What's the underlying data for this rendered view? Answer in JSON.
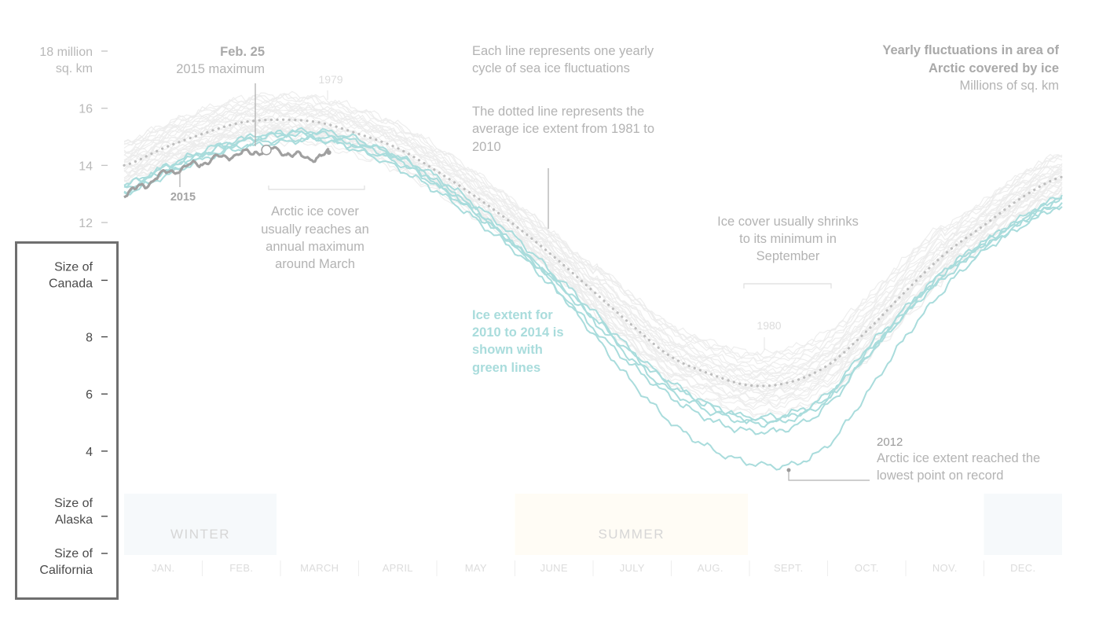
{
  "chart_data": {
    "type": "line",
    "title": "Yearly fluctuations in area of Arctic covered by ice",
    "title_lines": [
      "Yearly fluctuations in area of",
      "Arctic covered by ice"
    ],
    "subtitle": "Millions of sq. km",
    "xlabel": "",
    "ylabel": "Millions of sq. km",
    "ylim": [
      0,
      18
    ],
    "xlim_months": [
      0,
      12
    ],
    "grid": false,
    "legend": "none",
    "colors": {
      "historical": "#ececec",
      "recent": "#a9dcdc",
      "year_2015": "#a0a0a0",
      "average": "#bdbdbd",
      "winter_band": "#f6f9fb",
      "summer_band": "#fffcf5"
    },
    "y_ticks": [
      {
        "value": 18,
        "label": [
          "18 million",
          "sq. km"
        ],
        "highlight": false
      },
      {
        "value": 16,
        "label": [
          "16"
        ],
        "highlight": false
      },
      {
        "value": 14,
        "label": [
          "14"
        ],
        "highlight": false
      },
      {
        "value": 12,
        "label": [
          "12"
        ],
        "highlight": false
      },
      {
        "value": 9.98,
        "label": [
          "Size of",
          "Canada"
        ],
        "highlight": true
      },
      {
        "value": 8,
        "label": [
          "8"
        ],
        "highlight": true
      },
      {
        "value": 6,
        "label": [
          "6"
        ],
        "highlight": true
      },
      {
        "value": 4,
        "label": [
          "4"
        ],
        "highlight": true
      },
      {
        "value": 1.72,
        "label": [
          "Size of",
          "Alaska"
        ],
        "highlight": true
      },
      {
        "value": 0.42,
        "label": [
          "Size of",
          "California"
        ],
        "highlight": true
      }
    ],
    "months": [
      "JAN.",
      "FEB.",
      "MARCH",
      "APRIL",
      "MAY",
      "JUNE",
      "JULY",
      "AUG.",
      "SEPT.",
      "OCT.",
      "NOV.",
      "DEC."
    ],
    "seasons": [
      {
        "label": "WINTER",
        "start_month": 0,
        "end_month": 1.95,
        "kind": "winter"
      },
      {
        "label": "SUMMER",
        "start_month": 5.0,
        "end_month": 7.98,
        "kind": "summer"
      },
      {
        "label": "",
        "start_month": 11.0,
        "end_month": 12,
        "kind": "winter"
      }
    ],
    "month_positions": [
      0.5,
      1.5,
      2.5,
      3.5,
      4.5,
      5.5,
      6.5,
      7.5,
      8.5,
      9.5,
      10.5,
      11.5
    ],
    "average_1981_2010": {
      "name": "1981–2010 average",
      "x": [
        0,
        0.5,
        1,
        1.5,
        2,
        2.5,
        3,
        3.5,
        4,
        4.5,
        5,
        5.5,
        6,
        6.5,
        7,
        7.5,
        8,
        8.5,
        9,
        9.5,
        10,
        10.5,
        11,
        11.5,
        12
      ],
      "values": [
        14.0,
        14.6,
        15.1,
        15.5,
        15.6,
        15.5,
        15.1,
        14.6,
        13.8,
        12.9,
        11.9,
        10.8,
        9.6,
        8.4,
        7.3,
        6.7,
        6.3,
        6.4,
        7.0,
        8.2,
        9.6,
        10.9,
        11.9,
        12.9,
        13.6
      ]
    },
    "series_recent": [
      {
        "name": "2010",
        "x": [
          0,
          0.5,
          1,
          1.5,
          2,
          2.5,
          3,
          3.5,
          4,
          4.5,
          5,
          5.5,
          6,
          6.5,
          7,
          7.5,
          8,
          8.5,
          9,
          9.5,
          10,
          10.5,
          11,
          11.5,
          12
        ],
        "values": [
          13.1,
          13.7,
          14.4,
          14.9,
          15.1,
          15.0,
          14.6,
          14.1,
          13.3,
          12.3,
          11.2,
          10.0,
          8.7,
          7.4,
          6.3,
          5.6,
          5.2,
          5.3,
          6.0,
          7.6,
          9.0,
          10.3,
          11.3,
          12.1,
          12.9
        ]
      },
      {
        "name": "2011",
        "x": [
          0,
          0.5,
          1,
          1.5,
          2,
          2.5,
          3,
          3.5,
          4,
          4.5,
          5,
          5.5,
          6,
          6.5,
          7,
          7.5,
          8,
          8.5,
          9,
          9.5,
          10,
          10.5,
          11,
          11.5,
          12
        ],
        "values": [
          13.0,
          13.6,
          14.2,
          14.6,
          14.8,
          14.9,
          14.5,
          13.9,
          13.1,
          12.1,
          11.0,
          9.7,
          8.3,
          7.0,
          5.9,
          5.1,
          4.7,
          4.8,
          5.6,
          7.3,
          8.8,
          10.1,
          11.1,
          12.0,
          12.6
        ]
      },
      {
        "name": "2012",
        "x": [
          0,
          0.5,
          1,
          1.5,
          2,
          2.5,
          3,
          3.5,
          4,
          4.5,
          5,
          5.5,
          6,
          6.5,
          7,
          7.5,
          8,
          8.5,
          9,
          9.5,
          10,
          10.5,
          11,
          11.5,
          12
        ],
        "values": [
          13.3,
          13.9,
          14.4,
          14.8,
          15.1,
          15.2,
          14.9,
          14.3,
          13.4,
          12.4,
          11.2,
          9.8,
          8.1,
          6.4,
          5.0,
          4.1,
          3.6,
          3.5,
          4.2,
          6.0,
          8.0,
          9.7,
          11.0,
          11.9,
          12.6
        ]
      },
      {
        "name": "2013",
        "x": [
          0,
          0.5,
          1,
          1.5,
          2,
          2.5,
          3,
          3.5,
          4,
          4.5,
          5,
          5.5,
          6,
          6.5,
          7,
          7.5,
          8,
          8.5,
          9,
          9.5,
          10,
          10.5,
          11,
          11.5,
          12
        ],
        "values": [
          13.3,
          13.9,
          14.5,
          14.9,
          15.1,
          15.1,
          14.8,
          14.3,
          13.6,
          12.6,
          11.5,
          10.2,
          8.9,
          7.5,
          6.4,
          5.6,
          5.1,
          5.2,
          5.9,
          7.4,
          8.9,
          10.2,
          11.2,
          12.1,
          12.8
        ]
      },
      {
        "name": "2014",
        "x": [
          0,
          0.5,
          1,
          1.5,
          2,
          2.5,
          3,
          3.5,
          4,
          4.5,
          5,
          5.5,
          6,
          6.5,
          7,
          7.5,
          8,
          8.5,
          9,
          9.5,
          10,
          10.5,
          11,
          11.5,
          12
        ],
        "values": [
          13.2,
          13.8,
          14.3,
          14.7,
          14.9,
          14.9,
          14.7,
          14.2,
          13.4,
          12.4,
          11.2,
          10.0,
          8.6,
          7.2,
          6.1,
          5.4,
          5.0,
          5.1,
          5.8,
          7.3,
          8.9,
          10.3,
          11.3,
          12.2,
          12.9
        ]
      }
    ],
    "series_2015": {
      "name": "2015",
      "x": [
        0,
        0.25,
        0.5,
        0.75,
        1.0,
        1.25,
        1.5,
        1.75,
        1.82,
        2.0,
        2.25,
        2.5,
        2.62
      ],
      "values": [
        13.0,
        13.3,
        13.7,
        13.9,
        14.1,
        14.3,
        14.4,
        14.5,
        14.54,
        14.5,
        14.3,
        14.3,
        14.45
      ]
    },
    "historical_count": 31,
    "maximum_2015": {
      "month": 1.82,
      "value": 14.54
    }
  },
  "annotations": {
    "max_date": "Feb. 25",
    "max_label": "2015 maximum",
    "label_2015": "2015",
    "label_1979": "1979",
    "label_1980": "1980",
    "each_line": [
      "Each line represents one yearly",
      "cycle of sea ice fluctuations"
    ],
    "dotted_line": [
      "The dotted line represents the",
      "average ice extent from 1981 to",
      "2010"
    ],
    "march_max": [
      "Arctic ice cover",
      "usually reaches an",
      "annual maximum",
      "around March"
    ],
    "green_lines": [
      "Ice extent for",
      "2010 to 2014 is",
      "shown with",
      "green lines"
    ],
    "september_min": [
      "Ice cover usually shrinks",
      "to its minimum in",
      "September"
    ],
    "record_year": "2012",
    "record_text": [
      "Arctic ice extent reached the",
      "lowest point on record"
    ]
  }
}
